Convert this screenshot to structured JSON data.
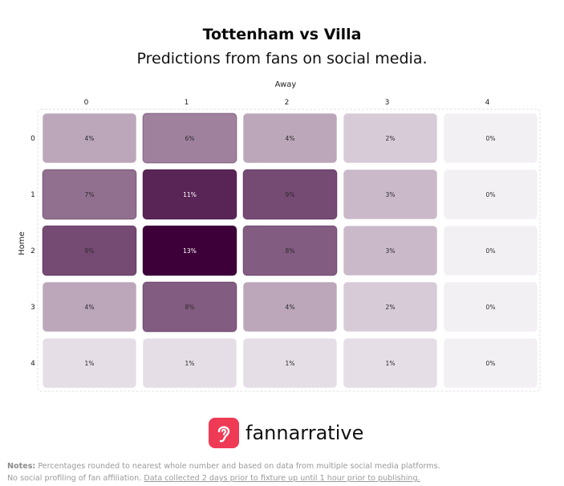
{
  "header": {
    "title": "Tottenham vs Villa",
    "subtitle": "Predictions from fans on social media."
  },
  "chart_data": {
    "type": "heatmap",
    "title": "Tottenham vs Villa",
    "subtitle": "Predictions from fans on social media.",
    "xlabel": "Away",
    "ylabel": "Home",
    "x_categories": [
      "0",
      "1",
      "2",
      "3",
      "4"
    ],
    "y_categories": [
      "0",
      "1",
      "2",
      "3",
      "4"
    ],
    "values": [
      [
        4,
        6,
        4,
        2,
        0
      ],
      [
        7,
        11,
        9,
        3,
        0
      ],
      [
        9,
        13,
        8,
        3,
        0
      ],
      [
        4,
        8,
        4,
        2,
        0
      ],
      [
        1,
        1,
        1,
        1,
        0
      ]
    ],
    "value_suffix": "%",
    "value_range": [
      0,
      13
    ],
    "color_low": "#f3f0f4",
    "color_high": "#3d0039",
    "grid": false
  },
  "logo": {
    "text": "fannarrative",
    "icon": "ear-icon",
    "color": "#ef3a55"
  },
  "notes": {
    "label": "Notes:",
    "line1": "Percentages rounded to nearest whole number and based on data from multiple social media platforms.",
    "line2_plain": "No social profiling of fan affiliation.",
    "line2_link": "Data collected 2 days prior to fixture up until 1 hour prior to publishing."
  }
}
